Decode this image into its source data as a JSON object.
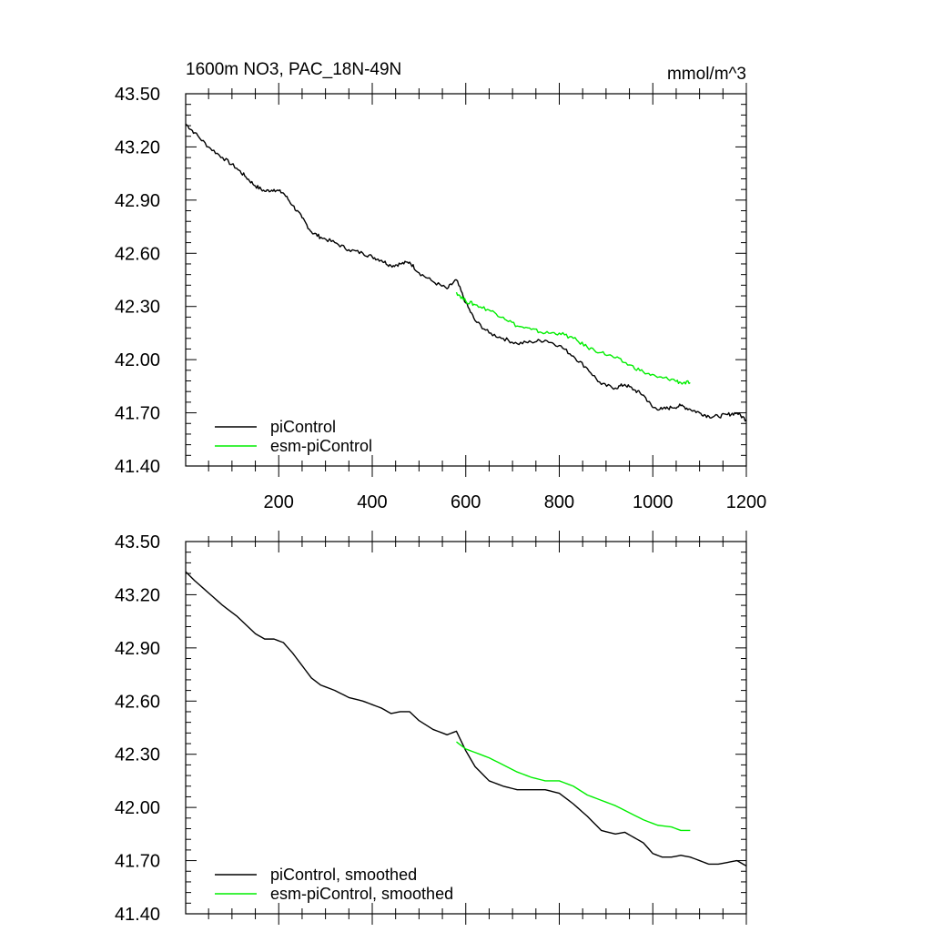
{
  "figure": {
    "title_left": "1600m NO3, PAC_18N-49N",
    "title_right": "mmol/m^3"
  },
  "chart_data": [
    {
      "type": "line",
      "panel": "raw",
      "title": "1600m NO3, PAC_18N-49N",
      "units": "mmol/m^3",
      "xlabel": "",
      "ylabel": "",
      "xlim": [
        1,
        1200
      ],
      "ylim": [
        41.4,
        43.5
      ],
      "xticks": [
        200,
        400,
        600,
        800,
        1000,
        1200
      ],
      "xtick_labels": [
        "200",
        "400",
        "600",
        "800",
        "1000",
        "1200"
      ],
      "yticks": [
        41.4,
        41.7,
        42.0,
        42.3,
        42.6,
        42.9,
        43.2,
        43.5
      ],
      "ytick_labels": [
        "41.40",
        "41.70",
        "42.00",
        "42.30",
        "42.60",
        "42.90",
        "43.20",
        "43.50"
      ],
      "legend_position": "bottom-left",
      "series": [
        {
          "name": "piControl",
          "color": "#000000",
          "x": [
            1,
            20,
            50,
            80,
            110,
            130,
            150,
            170,
            190,
            210,
            230,
            250,
            270,
            290,
            320,
            350,
            380,
            400,
            420,
            440,
            460,
            480,
            500,
            530,
            560,
            580,
            600,
            620,
            650,
            680,
            710,
            740,
            770,
            800,
            830,
            860,
            890,
            920,
            940,
            960,
            980,
            1000,
            1020,
            1040,
            1060,
            1080,
            1100,
            1120,
            1140,
            1160,
            1180,
            1200
          ],
          "values": [
            43.33,
            43.28,
            43.2,
            43.14,
            43.08,
            43.03,
            42.98,
            42.95,
            42.96,
            42.94,
            42.87,
            42.8,
            42.72,
            42.69,
            42.66,
            42.62,
            42.6,
            42.58,
            42.56,
            42.53,
            42.54,
            42.55,
            42.49,
            42.44,
            42.4,
            42.45,
            42.32,
            42.22,
            42.15,
            42.12,
            42.09,
            42.1,
            42.11,
            42.08,
            42.02,
            41.95,
            41.86,
            41.84,
            41.86,
            41.83,
            41.8,
            41.73,
            41.72,
            41.73,
            41.74,
            41.72,
            41.7,
            41.68,
            41.68,
            41.69,
            41.7,
            41.66
          ]
        },
        {
          "name": "esm-piControl",
          "color": "#00ee00",
          "x": [
            580,
            600,
            620,
            650,
            680,
            710,
            740,
            770,
            800,
            830,
            860,
            890,
            920,
            950,
            980,
            1010,
            1040,
            1060,
            1080
          ],
          "values": [
            42.38,
            42.33,
            42.31,
            42.28,
            42.24,
            42.19,
            42.17,
            42.15,
            42.15,
            42.12,
            42.07,
            42.04,
            42.01,
            41.97,
            41.93,
            41.9,
            41.89,
            41.87,
            41.87
          ]
        }
      ]
    },
    {
      "type": "line",
      "panel": "smoothed",
      "title": "",
      "xlabel": "",
      "ylabel": "",
      "xlim": [
        1,
        1200
      ],
      "ylim": [
        41.4,
        43.5
      ],
      "xticks": [
        200,
        400,
        600,
        800,
        1000,
        1200
      ],
      "yticks": [
        41.4,
        41.7,
        42.0,
        42.3,
        42.6,
        42.9,
        43.2,
        43.5
      ],
      "ytick_labels": [
        "41.40",
        "41.70",
        "42.00",
        "42.30",
        "42.60",
        "42.90",
        "43.20",
        "43.50"
      ],
      "legend_position": "bottom-left",
      "series": [
        {
          "name": "piControl, smoothed",
          "color": "#000000",
          "x": [
            1,
            20,
            50,
            80,
            110,
            130,
            150,
            170,
            190,
            210,
            230,
            250,
            270,
            290,
            320,
            350,
            380,
            400,
            420,
            440,
            460,
            480,
            500,
            530,
            560,
            580,
            600,
            620,
            650,
            680,
            710,
            740,
            770,
            800,
            830,
            860,
            890,
            920,
            940,
            960,
            980,
            1000,
            1020,
            1040,
            1060,
            1080,
            1100,
            1120,
            1140,
            1160,
            1180,
            1200
          ],
          "values": [
            43.33,
            43.28,
            43.21,
            43.14,
            43.08,
            43.03,
            42.98,
            42.95,
            42.95,
            42.93,
            42.87,
            42.8,
            42.73,
            42.69,
            42.66,
            42.62,
            42.6,
            42.58,
            42.56,
            42.53,
            42.54,
            42.54,
            42.49,
            42.44,
            42.41,
            42.43,
            42.32,
            42.23,
            42.15,
            42.12,
            42.1,
            42.1,
            42.1,
            42.08,
            42.02,
            41.95,
            41.87,
            41.85,
            41.86,
            41.83,
            41.8,
            41.74,
            41.72,
            41.72,
            41.73,
            41.72,
            41.7,
            41.68,
            41.68,
            41.69,
            41.7,
            41.67
          ]
        },
        {
          "name": "esm-piControl, smoothed",
          "color": "#00ee00",
          "x": [
            580,
            600,
            620,
            650,
            680,
            710,
            740,
            770,
            800,
            830,
            860,
            890,
            920,
            950,
            980,
            1010,
            1040,
            1060,
            1080
          ],
          "values": [
            42.37,
            42.33,
            42.31,
            42.28,
            42.24,
            42.2,
            42.17,
            42.15,
            42.15,
            42.12,
            42.07,
            42.04,
            42.01,
            41.97,
            41.93,
            41.9,
            41.89,
            41.87,
            41.87
          ]
        }
      ]
    }
  ]
}
